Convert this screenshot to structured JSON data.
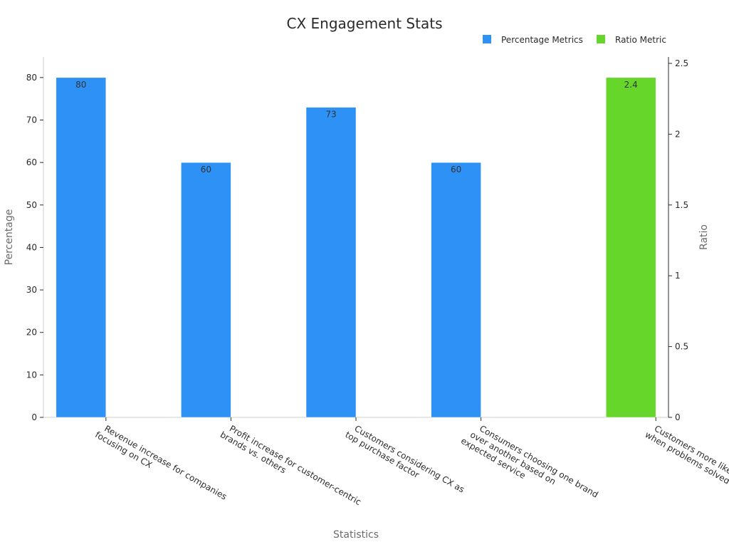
{
  "chart_data": {
    "type": "bar",
    "title": "CX Engagement Stats",
    "xlabel": "Statistics",
    "ylabel": "Percentage",
    "y2label": "Ratio",
    "ylim": [
      0,
      84
    ],
    "y2lim": [
      0,
      2.52
    ],
    "yticks": [
      "0",
      "10",
      "20",
      "30",
      "40",
      "50",
      "60",
      "70",
      "80"
    ],
    "y2ticks": [
      "0",
      "0.5",
      "1",
      "1.5",
      "2",
      "2.5"
    ],
    "legend_position": "top-right",
    "grid": false,
    "categories": [
      [
        "Revenue increase for companies",
        "focusing on CX"
      ],
      [
        "Profit increase for customer-centric",
        "brands vs. others"
      ],
      [
        "Customers considering CX as",
        "top purchase factor"
      ],
      [
        "Consumers choosing one brand",
        "over another based on",
        "expected service"
      ],
      [
        "Customers more likely to stay",
        "when problems solved quickly"
      ]
    ],
    "series": [
      {
        "name": "Percentage Metrics",
        "axis": "left",
        "color": "#2e91f5",
        "values": [
          80,
          60,
          73,
          60,
          null
        ],
        "labels": [
          "80",
          "60",
          "73",
          "60",
          ""
        ]
      },
      {
        "name": "Ratio Metric",
        "axis": "right",
        "color": "#66d62a",
        "values": [
          null,
          null,
          null,
          null,
          2.4
        ],
        "labels": [
          "",
          "",
          "",
          "",
          "2.4"
        ]
      }
    ]
  }
}
